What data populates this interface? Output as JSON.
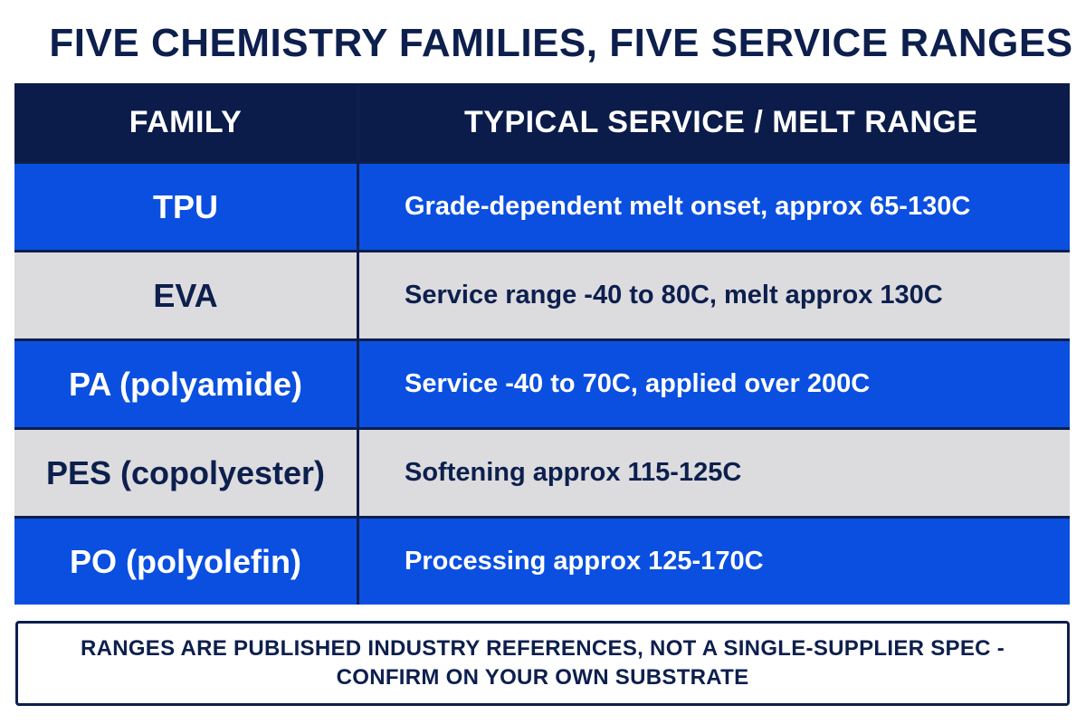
{
  "title": "FIVE CHEMISTRY FAMILIES, FIVE SERVICE RANGES",
  "table": {
    "headers": {
      "family": "FAMILY",
      "range": "TYPICAL SERVICE / MELT RANGE"
    },
    "rows": [
      {
        "family": "TPU",
        "range": "Grade-dependent melt onset, approx 65-130C",
        "style": "blue"
      },
      {
        "family": "EVA",
        "range": "Service range -40 to 80C, melt approx 130C",
        "style": "gray"
      },
      {
        "family": "PA (polyamide)",
        "range": "Service -40 to 70C, applied over 200C",
        "style": "blue"
      },
      {
        "family": "PES (copolyester)",
        "range": "Softening approx 115-125C",
        "style": "gray"
      },
      {
        "family": "PO (polyolefin)",
        "range": "Processing approx 125-170C",
        "style": "blue"
      }
    ]
  },
  "note": {
    "line1": "RANGES ARE PUBLISHED INDUSTRY REFERENCES, NOT A SINGLE-SUPPLIER SPEC -",
    "line2": "CONFIRM ON YOUR OWN SUBSTRATE"
  },
  "colors": {
    "navy": "#0d1f4d",
    "blue_row": "#0a4fe0",
    "gray_row": "#dcdcdf"
  }
}
